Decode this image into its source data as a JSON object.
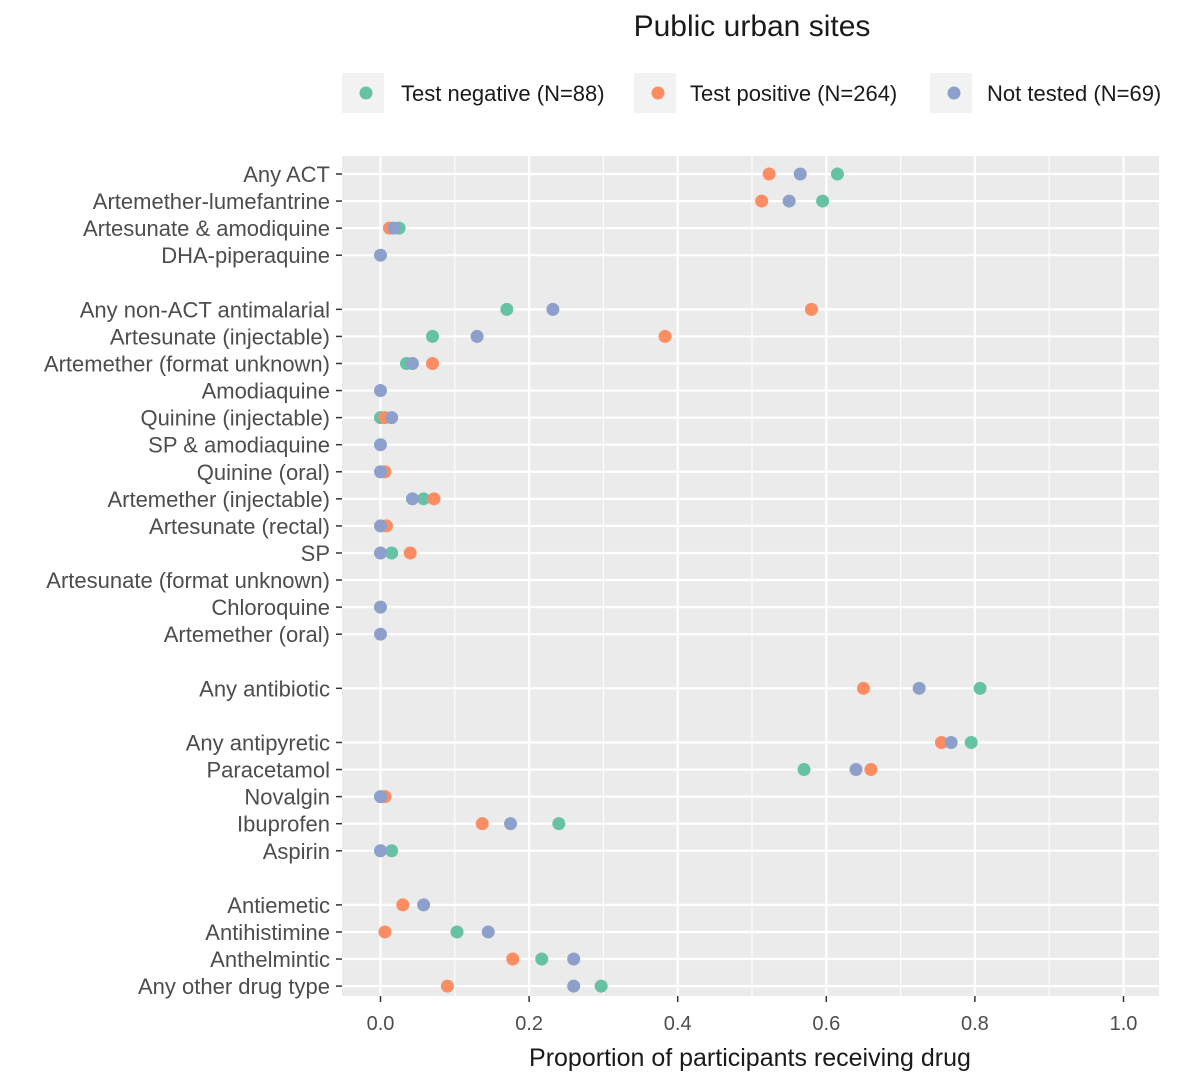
{
  "chart_data": {
    "type": "scatter",
    "title": "Public urban sites",
    "xlabel": "Proportion of participants receiving drug",
    "ylabel": "",
    "xlim": [
      -0.05,
      1.05
    ],
    "x_ticks": [
      "0.0",
      "0.2",
      "0.4",
      "0.6",
      "0.8",
      "1.0"
    ],
    "grid": true,
    "legend_position": "top",
    "categories": [
      "Any ACT",
      "Artemether-lumefantrine",
      "Artesunate & amodiquine",
      "DHA-piperaquine",
      "",
      "Any non-ACT antimalarial",
      "Artesunate (injectable)",
      "Artemether (format unknown)",
      "Amodiaquine",
      "Quinine (injectable)",
      "SP & amodiaquine",
      "Quinine (oral)",
      "Artemether (injectable)",
      "Artesunate (rectal)",
      "SP",
      "Artesunate (format unknown)",
      "Chloroquine",
      "Artemether (oral)",
      "",
      "Any antibiotic",
      "",
      "Any antipyretic",
      "Paracetamol",
      "Novalgin",
      "Ibuprofen",
      "Aspirin",
      "",
      "Antiemetic",
      "Antihistimine",
      "Anthelmintic",
      "Any other drug type"
    ],
    "series": [
      {
        "name": "Test negative (N=88)",
        "color": "#66c2a5",
        "values": [
          0.615,
          0.595,
          0.025,
          null,
          null,
          0.17,
          0.07,
          0.035,
          null,
          0.0,
          null,
          null,
          0.058,
          null,
          0.015,
          null,
          null,
          null,
          null,
          0.807,
          null,
          0.795,
          0.57,
          null,
          0.24,
          0.015,
          null,
          null,
          0.103,
          0.217,
          0.297
        ]
      },
      {
        "name": "Test positive (N=264)",
        "color": "#fc8d62",
        "values": [
          0.523,
          0.513,
          0.012,
          null,
          null,
          0.58,
          0.383,
          0.07,
          null,
          0.006,
          null,
          0.006,
          0.072,
          0.008,
          0.04,
          null,
          null,
          null,
          null,
          0.65,
          null,
          0.755,
          0.66,
          0.006,
          0.137,
          null,
          null,
          0.03,
          0.006,
          0.178,
          0.09
        ]
      },
      {
        "name": "Not tested (N=69)",
        "color": "#8da0cb",
        "values": [
          0.565,
          0.55,
          0.018,
          0.0,
          null,
          0.232,
          0.13,
          0.043,
          0.0,
          0.015,
          0.0,
          0.0,
          0.043,
          0.0,
          0.0,
          null,
          0.0,
          0.0,
          null,
          0.725,
          null,
          0.768,
          0.64,
          0.0,
          0.175,
          0.0,
          null,
          0.058,
          0.145,
          0.26,
          0.26
        ]
      }
    ]
  }
}
